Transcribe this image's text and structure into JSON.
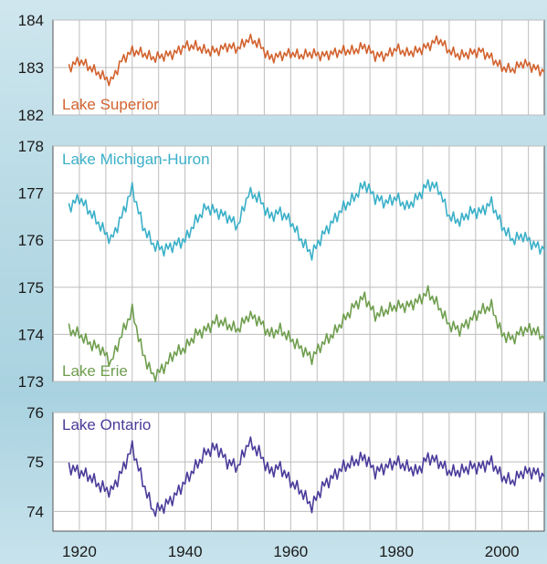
{
  "chart_data": [
    {
      "type": "line",
      "x": [
        1918,
        1920,
        1922,
        1924,
        1926,
        1928,
        1930,
        1932,
        1934,
        1936,
        1938,
        1940,
        1942,
        1944,
        1946,
        1948,
        1950,
        1952,
        1954,
        1956,
        1958,
        1960,
        1962,
        1964,
        1966,
        1968,
        1970,
        1972,
        1974,
        1976,
        1978,
        1980,
        1982,
        1984,
        1986,
        1988,
        1990,
        1992,
        1994,
        1996,
        1998,
        2000,
        2002,
        2004,
        2006,
        2008
      ],
      "series": [
        {
          "name": "Lake Superior",
          "color": "#d2622e",
          "values": [
            183.0,
            183.15,
            183.0,
            182.85,
            182.7,
            183.15,
            183.35,
            183.3,
            183.2,
            183.25,
            183.3,
            183.45,
            183.45,
            183.35,
            183.35,
            183.45,
            183.4,
            183.6,
            183.5,
            183.2,
            183.25,
            183.3,
            183.25,
            183.3,
            183.25,
            183.3,
            183.35,
            183.35,
            183.45,
            183.25,
            183.25,
            183.4,
            183.3,
            183.35,
            183.45,
            183.6,
            183.35,
            183.25,
            183.3,
            183.35,
            183.2,
            183.0,
            182.95,
            183.1,
            183.0,
            182.9
          ]
        }
      ],
      "ylim": [
        182,
        184
      ],
      "yticks": [
        "182",
        "183",
        "184"
      ],
      "grid": true
    },
    {
      "type": "line",
      "x": [
        1918,
        1920,
        1922,
        1924,
        1926,
        1928,
        1930,
        1932,
        1934,
        1936,
        1938,
        1940,
        1942,
        1944,
        1946,
        1948,
        1950,
        1952,
        1954,
        1956,
        1958,
        1960,
        1962,
        1964,
        1966,
        1968,
        1970,
        1972,
        1974,
        1976,
        1978,
        1980,
        1982,
        1984,
        1986,
        1988,
        1990,
        1992,
        1994,
        1996,
        1998,
        2000,
        2002,
        2004,
        2006,
        2008
      ],
      "series": [
        {
          "name": "Lake Michigan-Huron",
          "color": "#3ab0c8",
          "values": [
            176.7,
            176.9,
            176.6,
            176.3,
            176.0,
            176.5,
            177.1,
            176.3,
            175.9,
            175.8,
            175.9,
            176.0,
            176.4,
            176.7,
            176.6,
            176.5,
            176.3,
            177.0,
            176.9,
            176.5,
            176.6,
            176.4,
            176.0,
            175.7,
            176.1,
            176.4,
            176.7,
            176.9,
            177.2,
            176.9,
            176.8,
            176.9,
            176.7,
            176.9,
            177.2,
            177.1,
            176.5,
            176.4,
            176.6,
            176.6,
            176.8,
            176.3,
            176.0,
            176.1,
            175.9,
            175.8
          ]
        },
        {
          "name": "Lake Erie",
          "color": "#6f9e4e",
          "values": [
            174.1,
            174.0,
            173.8,
            173.7,
            173.4,
            174.0,
            174.5,
            173.6,
            173.1,
            173.3,
            173.6,
            173.7,
            174.0,
            174.1,
            174.3,
            174.2,
            174.1,
            174.4,
            174.3,
            174.0,
            174.1,
            173.9,
            173.7,
            173.5,
            173.8,
            174.0,
            174.3,
            174.6,
            174.8,
            174.4,
            174.5,
            174.6,
            174.6,
            174.7,
            174.9,
            174.6,
            174.2,
            174.1,
            174.3,
            174.5,
            174.6,
            174.0,
            173.9,
            174.1,
            174.1,
            173.9
          ]
        }
      ],
      "ylim": [
        173,
        178
      ],
      "yticks": [
        "173",
        "174",
        "175",
        "176",
        "177",
        "178"
      ],
      "grid": true
    },
    {
      "type": "line",
      "x": [
        1918,
        1920,
        1922,
        1924,
        1926,
        1928,
        1930,
        1932,
        1934,
        1936,
        1938,
        1940,
        1942,
        1944,
        1946,
        1948,
        1950,
        1952,
        1954,
        1956,
        1958,
        1960,
        1962,
        1964,
        1966,
        1968,
        1970,
        1972,
        1974,
        1976,
        1978,
        1980,
        1982,
        1984,
        1986,
        1988,
        1990,
        1992,
        1994,
        1996,
        1998,
        2000,
        2002,
        2004,
        2006,
        2008
      ],
      "series": [
        {
          "name": "Lake Ontario",
          "color": "#4a3c9a",
          "values": [
            74.9,
            74.8,
            74.7,
            74.5,
            74.4,
            74.8,
            75.3,
            74.6,
            74.0,
            74.1,
            74.3,
            74.6,
            74.9,
            75.2,
            75.3,
            75.0,
            74.9,
            75.4,
            75.2,
            74.8,
            74.9,
            74.6,
            74.4,
            74.1,
            74.5,
            74.7,
            74.9,
            75.0,
            75.1,
            74.8,
            74.9,
            75.0,
            74.9,
            74.8,
            75.1,
            75.0,
            74.8,
            74.8,
            74.9,
            74.9,
            75.0,
            74.7,
            74.6,
            74.8,
            74.8,
            74.7
          ]
        }
      ],
      "ylim": [
        73.6,
        76.0
      ],
      "yticks": [
        "74",
        "75",
        "76"
      ],
      "grid": true
    }
  ],
  "x_axis": {
    "xlim": [
      1915,
      2008
    ],
    "ticks": [
      "1920",
      "1940",
      "1960",
      "1980",
      "2000"
    ]
  }
}
